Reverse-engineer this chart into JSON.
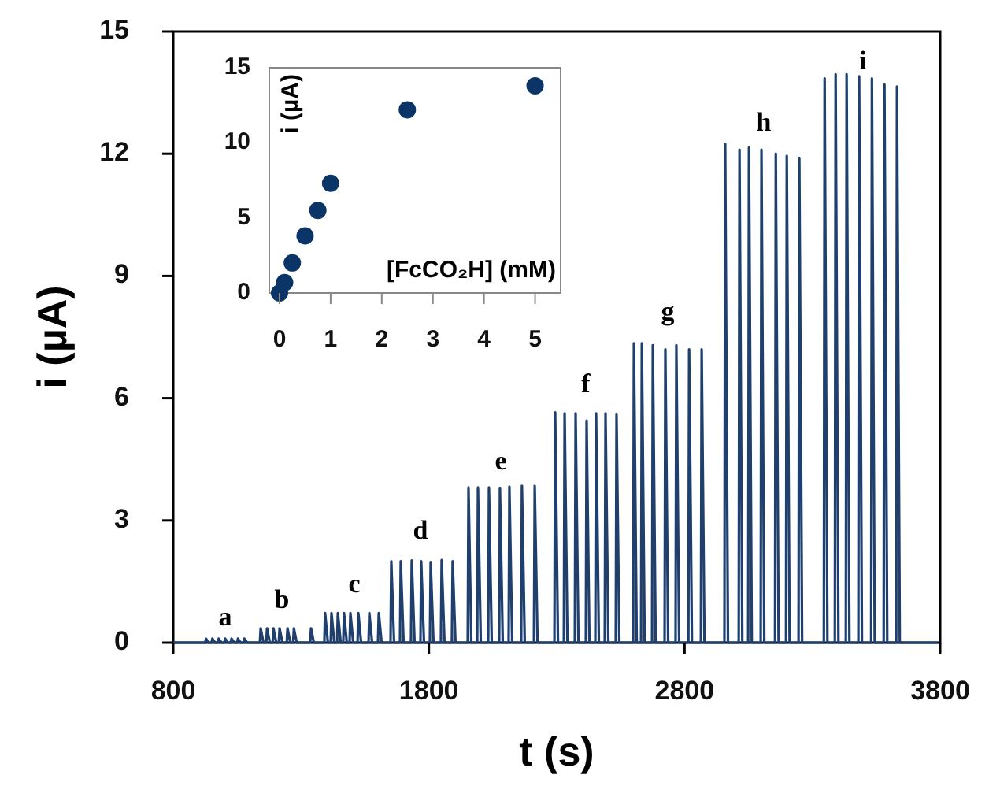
{
  "chart_data": [
    {
      "type": "line",
      "color": "#1f3f6e",
      "xlabel": "t (s)",
      "ylabel": "i (µA)",
      "xlim": [
        800,
        3800
      ],
      "ylim": [
        0,
        15
      ],
      "xticks": [
        800,
        1800,
        2800,
        3800
      ],
      "yticks": [
        0,
        3,
        6,
        9,
        12,
        15
      ],
      "x": [
        800,
        925,
        928,
        939,
        950,
        953,
        964,
        975,
        978,
        989,
        1000,
        1003,
        1014,
        1025,
        1028,
        1039,
        1050,
        1053,
        1064,
        1075,
        1078,
        1089,
        1139,
        1142,
        1153,
        1164,
        1167,
        1178,
        1189,
        1192,
        1203,
        1213,
        1216,
        1227,
        1244,
        1247,
        1258,
        1269,
        1272,
        1283,
        1336,
        1339,
        1350,
        1391,
        1394,
        1405,
        1416,
        1419,
        1430,
        1441,
        1444,
        1455,
        1465,
        1468,
        1479,
        1490,
        1493,
        1504,
        1521,
        1524,
        1535,
        1564,
        1567,
        1578,
        1601,
        1604,
        1615,
        1650,
        1653,
        1664,
        1687,
        1690,
        1701,
        1730,
        1733,
        1744,
        1767,
        1770,
        1781,
        1804,
        1807,
        1818,
        1847,
        1850,
        1861,
        1890,
        1893,
        1904,
        1952,
        1955,
        1966,
        1989,
        1992,
        2003,
        2032,
        2035,
        2046,
        2075,
        2078,
        2089,
        2112,
        2115,
        2126,
        2161,
        2164,
        2175,
        2211,
        2214,
        2225,
        2291,
        2294,
        2305,
        2328,
        2331,
        2342,
        2371,
        2374,
        2385,
        2414,
        2417,
        2428,
        2451,
        2454,
        2465,
        2488,
        2491,
        2502,
        2531,
        2534,
        2545,
        2599,
        2602,
        2613,
        2630,
        2633,
        2644,
        2673,
        2676,
        2687,
        2722,
        2725,
        2736,
        2765,
        2768,
        2779,
        2815,
        2818,
        2829,
        2864,
        2867,
        2878,
        2956,
        2959,
        2970,
        3012,
        3015,
        3026,
        3049,
        3052,
        3063,
        3098,
        3101,
        3112,
        3154,
        3157,
        3168,
        3197,
        3200,
        3211,
        3246,
        3249,
        3260,
        3345,
        3348,
        3359,
        3388,
        3391,
        3402,
        3431,
        3434,
        3445,
        3480,
        3483,
        3494,
        3530,
        3533,
        3544,
        3579,
        3582,
        3593,
        3628,
        3631,
        3642,
        3790
      ],
      "values": [
        0,
        0,
        0.1,
        0,
        0,
        0.1,
        0,
        0,
        0.1,
        0,
        0,
        0.1,
        0,
        0,
        0.1,
        0,
        0,
        0.1,
        0,
        0,
        0.1,
        0,
        0,
        0.35,
        0,
        0,
        0.35,
        0,
        0,
        0.35,
        0,
        0,
        0.35,
        0,
        0,
        0.35,
        0,
        0,
        0.35,
        0,
        0,
        0.35,
        0,
        0,
        0.73,
        0,
        0,
        0.73,
        0,
        0,
        0.73,
        0,
        0,
        0.73,
        0,
        0,
        0.73,
        0,
        0,
        0.73,
        0,
        0,
        0.73,
        0,
        0,
        0.73,
        0,
        0,
        2.0,
        0,
        0,
        2.0,
        0,
        0,
        2.02,
        0,
        0,
        2.0,
        0,
        0,
        1.98,
        0,
        0,
        2.03,
        0,
        0,
        2.0,
        0,
        0,
        3.81,
        0,
        0,
        3.81,
        0,
        0,
        3.81,
        0,
        0,
        3.8,
        0,
        0,
        3.83,
        0,
        0,
        3.85,
        0,
        0,
        3.85,
        0,
        0,
        5.65,
        0,
        0,
        5.63,
        0,
        0,
        5.63,
        0,
        0,
        5.45,
        0,
        0,
        5.63,
        0,
        0,
        5.63,
        0,
        0,
        5.6,
        0,
        0,
        7.35,
        0,
        0,
        7.35,
        0,
        0,
        7.3,
        0,
        0,
        7.2,
        0,
        0,
        7.3,
        0,
        0,
        7.2,
        0,
        0,
        7.2,
        0,
        0,
        12.25,
        0,
        0,
        12.1,
        0,
        0,
        12.15,
        0,
        0,
        12.1,
        0,
        0,
        12.0,
        0,
        0,
        11.95,
        0,
        0,
        11.9,
        0,
        0,
        13.85,
        0,
        0,
        13.95,
        0,
        0,
        13.95,
        0,
        0,
        13.9,
        0,
        0,
        13.85,
        0,
        0,
        13.7,
        0,
        0,
        13.65,
        0,
        0
      ],
      "annotations": [
        "a",
        "b",
        "c",
        "d",
        "e",
        "f",
        "g",
        "h",
        "i"
      ]
    },
    {
      "type": "scatter",
      "color": "#0b3566",
      "marker": "circle",
      "xlabel": "[FcCO₂H] (mM)",
      "ylabel": "i (µA)",
      "xlim": [
        -0.2,
        5.5
      ],
      "ylim": [
        0,
        15
      ],
      "xticks": [
        0,
        1,
        2,
        3,
        4,
        5
      ],
      "yticks": [
        0,
        5,
        10,
        15
      ],
      "x": [
        0,
        0.1,
        0.25,
        0.5,
        0.75,
        1,
        2.5,
        5
      ],
      "values": [
        0,
        0.7,
        2.0,
        3.8,
        5.5,
        7.3,
        12.2,
        13.8
      ]
    }
  ]
}
